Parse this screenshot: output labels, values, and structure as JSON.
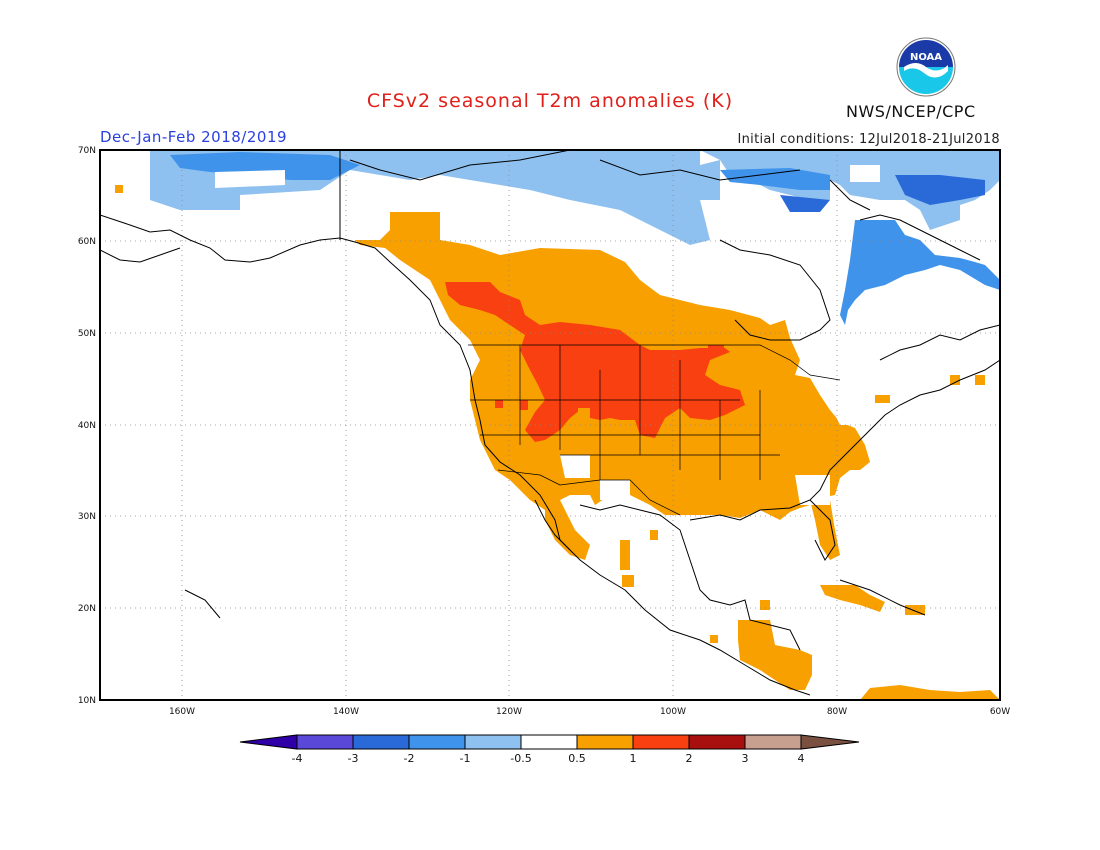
{
  "header": {
    "title": "CFSv2 seasonal T2m anomalies (K)",
    "period": "Dec-Jan-Feb 2018/2019",
    "initial_conditions": "Initial conditions: 12Jul2018-21Jul2018",
    "agency": "NWS/NCEP/CPC",
    "logo_text": "NOAA"
  },
  "map": {
    "lat_labels": [
      "70N",
      "60N",
      "50N",
      "40N",
      "30N",
      "20N",
      "10N"
    ],
    "lon_labels": [
      "160W",
      "140W",
      "120W",
      "100W",
      "80W",
      "60W"
    ]
  },
  "colorbar": {
    "labels": [
      "-4",
      "-3",
      "-2",
      "-1",
      "-0.5",
      "0.5",
      "1",
      "2",
      "3",
      "4"
    ],
    "colors": [
      "#2f00a8",
      "#5a48d8",
      "#2a6ad8",
      "#3f93ea",
      "#8ec0f0",
      "#ffffff",
      "#f8a000",
      "#f84010",
      "#a81010",
      "#c8a090",
      "#7a5040"
    ]
  },
  "anomaly_colors": {
    "cold_dark": "#2a6ad8",
    "cold_mid": "#3f93ea",
    "cold_light": "#8ec0f0",
    "warm_orange": "#f8a000",
    "warm_red": "#f84010"
  }
}
